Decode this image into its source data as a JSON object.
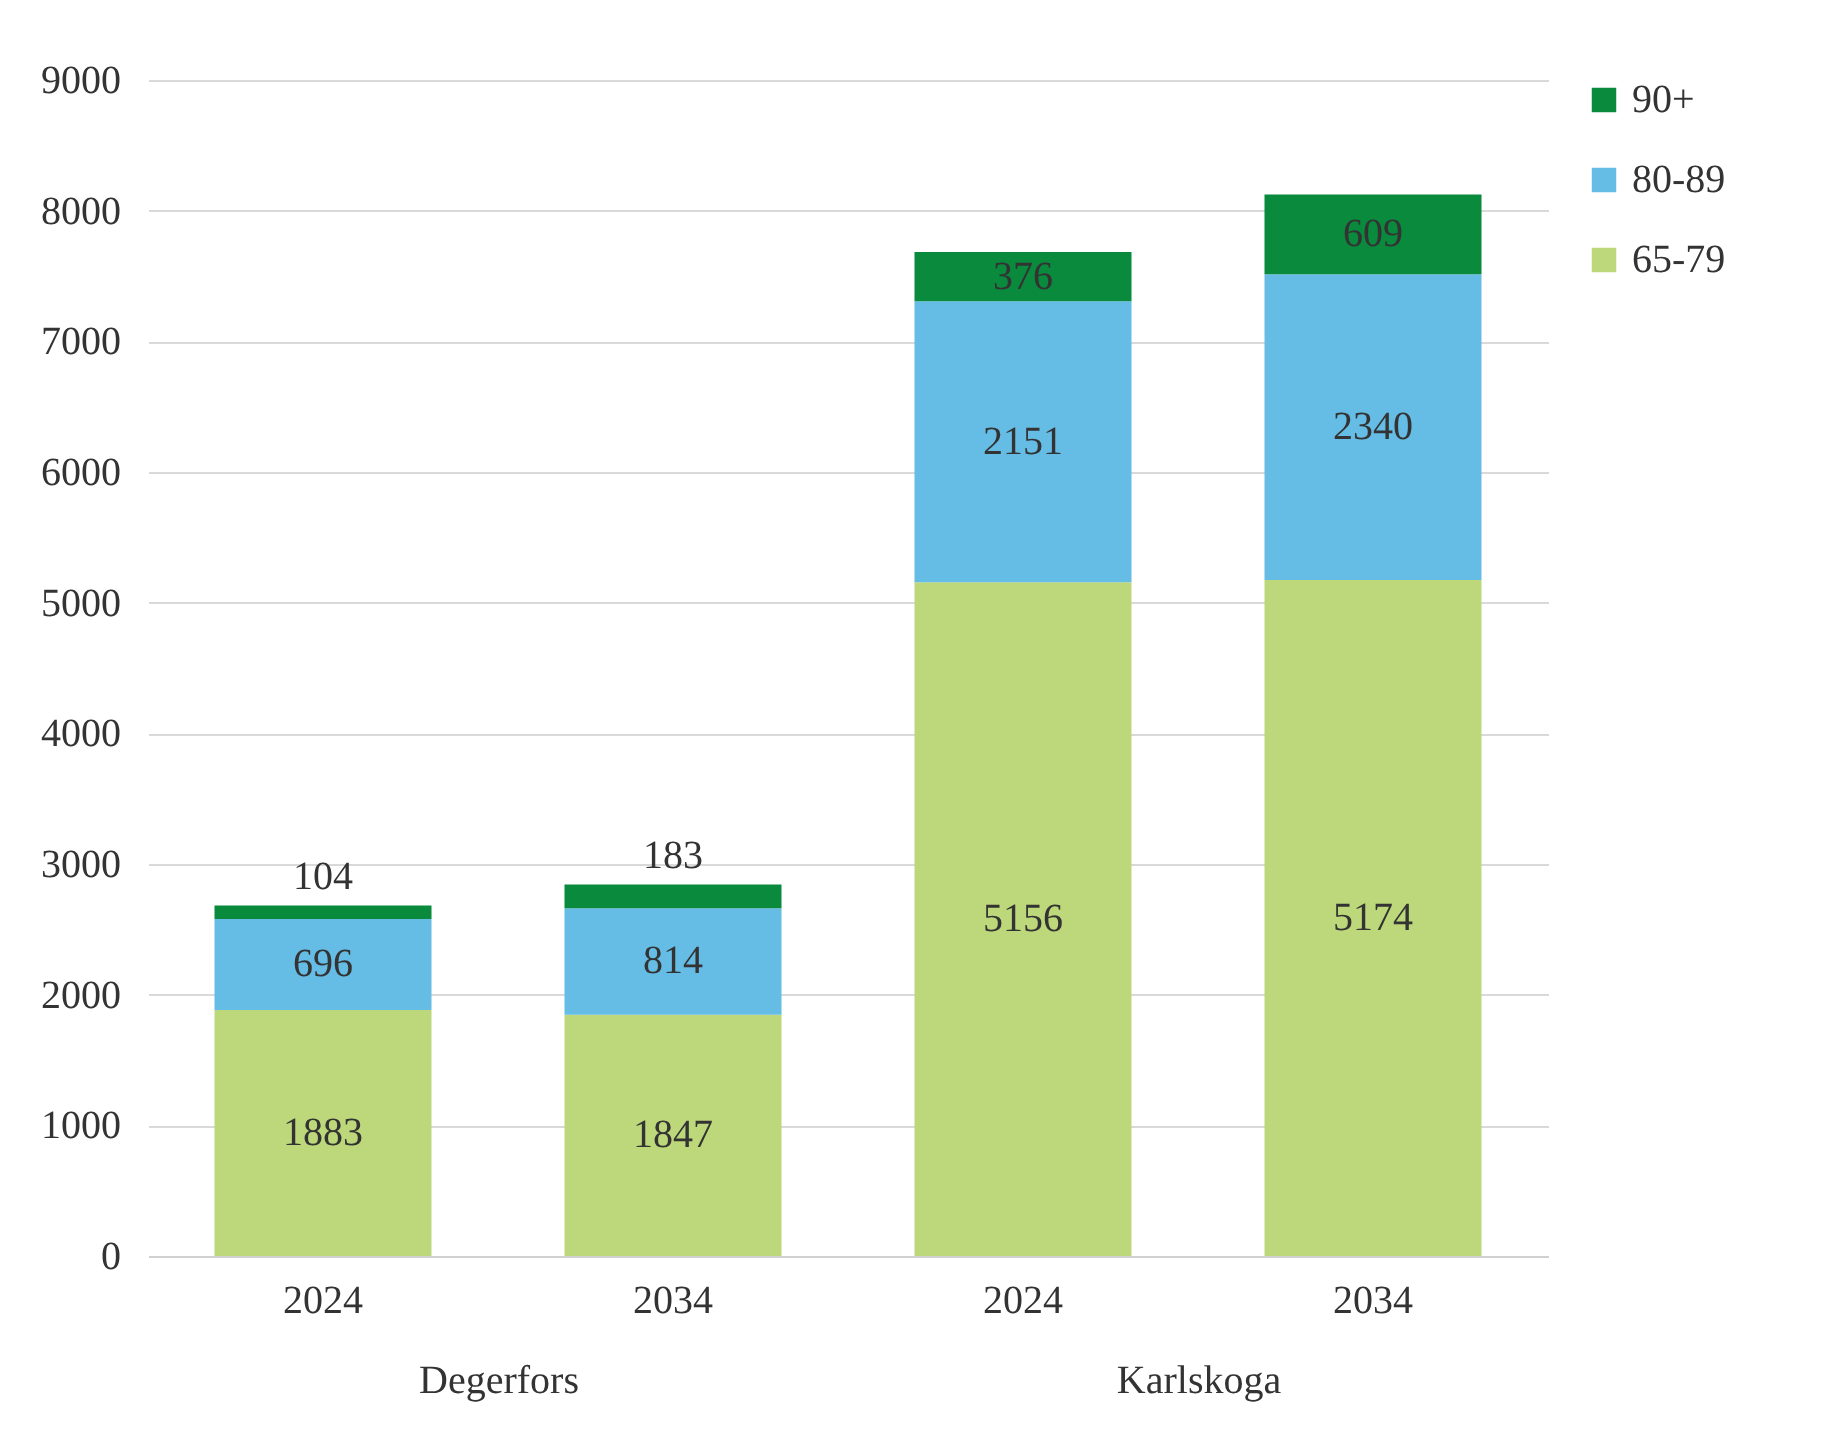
{
  "chart_data": {
    "type": "bar",
    "stacked": true,
    "categories": [
      "2024",
      "2034",
      "2024",
      "2034"
    ],
    "series": [
      {
        "name": "65-79",
        "color": "#bdd87a",
        "values": [
          1883,
          1847,
          5156,
          5174
        ]
      },
      {
        "name": "80-89",
        "color": "#65bde6",
        "values": [
          696,
          814,
          2151,
          2340
        ]
      },
      {
        "name": "90+",
        "color": "#0a8a3c",
        "values": [
          104,
          183,
          376,
          609
        ]
      }
    ],
    "annotations": [
      "Degerfors",
      "Karlskoga"
    ],
    "ylim": [
      0,
      9000
    ],
    "yticks": [
      0,
      1000,
      2000,
      3000,
      4000,
      5000,
      6000,
      7000,
      8000,
      9000
    ],
    "grid": "y",
    "legend": "right",
    "data_labels": true
  }
}
